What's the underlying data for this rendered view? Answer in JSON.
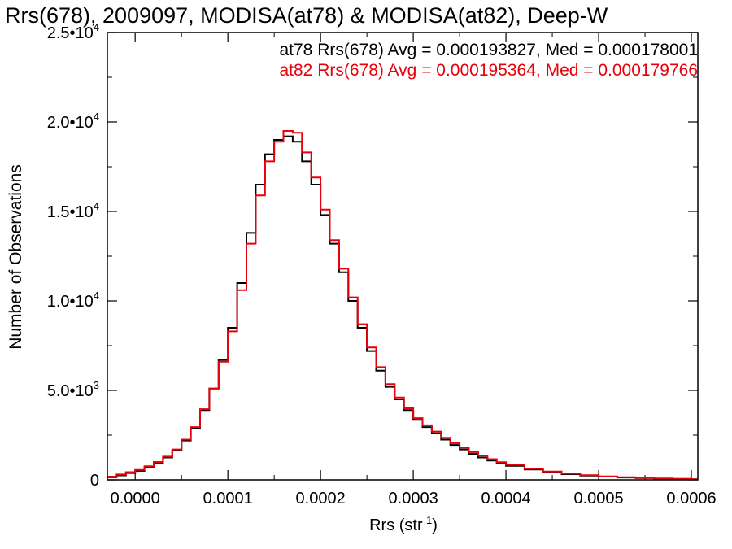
{
  "chart_data": {
    "type": "line",
    "style": "histogram-step",
    "title": "Rrs(678), 2009097, MODISA(at78) & MODISA(at82), Deep-W",
    "xlabel": "Rrs (str",
    "xlabel_sup": "-1",
    "xlabel_close": ")",
    "ylabel": "Number of Observations",
    "xlim": [
      -3e-05,
      0.000607
    ],
    "ylim": [
      0,
      25000
    ],
    "x_ticks": [
      0.0,
      0.0001,
      0.0002,
      0.0003,
      0.0004,
      0.0005,
      0.0006
    ],
    "x_tick_labels": [
      "0.0000",
      "0.0001",
      "0.0002",
      "0.0003",
      "0.0004",
      "0.0005",
      "0.0006"
    ],
    "y_ticks": [
      0,
      5000,
      10000,
      15000,
      20000,
      25000
    ],
    "y_tick_labels": [
      {
        "base": "0",
        "exp": ""
      },
      {
        "base": "5.0•10",
        "exp": "3"
      },
      {
        "base": "1.0•10",
        "exp": "4"
      },
      {
        "base": "1.5•10",
        "exp": "4"
      },
      {
        "base": "2.0•10",
        "exp": "4"
      },
      {
        "base": "2.5•10",
        "exp": "4"
      }
    ],
    "annotations": [
      {
        "text": "at78 Rrs(678) Avg = 0.000193827, Med = 0.000178001",
        "color": "#000000"
      },
      {
        "text": "at82 Rrs(678) Avg = 0.000195364, Med = 0.000179766",
        "color": "#e8000b"
      }
    ],
    "series": [
      {
        "color": "#000000",
        "x": [
          -3e-05,
          -2e-05,
          -1e-05,
          0.0,
          1e-05,
          2e-05,
          3e-05,
          4e-05,
          5e-05,
          6e-05,
          7e-05,
          8e-05,
          9e-05,
          0.0001,
          0.00011,
          0.00012,
          0.00013,
          0.00014,
          0.00015,
          0.00016,
          0.00017,
          0.00018,
          0.00019,
          0.0002,
          0.00021,
          0.00022,
          0.00023,
          0.00024,
          0.00025,
          0.00026,
          0.00027,
          0.00028,
          0.00029,
          0.0003,
          0.00031,
          0.00032,
          0.00033,
          0.00034,
          0.00035,
          0.00036,
          0.00037,
          0.00038,
          0.00039,
          0.0004,
          0.00042,
          0.00044,
          0.00046,
          0.00048,
          0.0005,
          0.00052,
          0.00054,
          0.00056,
          0.00058,
          0.0006
        ],
        "y": [
          150,
          250,
          380,
          500,
          700,
          950,
          1250,
          1650,
          2200,
          2900,
          3900,
          5100,
          6700,
          8500,
          11000,
          13800,
          16500,
          18200,
          19000,
          19200,
          18900,
          17800,
          16500,
          14800,
          13200,
          11600,
          10000,
          8500,
          7200,
          6100,
          5200,
          4500,
          3900,
          3350,
          2950,
          2600,
          2250,
          1950,
          1700,
          1450,
          1250,
          1080,
          920,
          780,
          580,
          430,
          320,
          240,
          180,
          130,
          100,
          70,
          50,
          30
        ]
      },
      {
        "color": "#e8000b",
        "x": [
          -3e-05,
          -2e-05,
          -1e-05,
          0.0,
          1e-05,
          2e-05,
          3e-05,
          4e-05,
          5e-05,
          6e-05,
          7e-05,
          8e-05,
          9e-05,
          0.0001,
          0.00011,
          0.00012,
          0.00013,
          0.00014,
          0.00015,
          0.00016,
          0.00017,
          0.00018,
          0.00019,
          0.0002,
          0.00021,
          0.00022,
          0.00023,
          0.00024,
          0.00025,
          0.00026,
          0.00027,
          0.00028,
          0.00029,
          0.0003,
          0.00031,
          0.00032,
          0.00033,
          0.00034,
          0.00035,
          0.00036,
          0.00037,
          0.00038,
          0.00039,
          0.0004,
          0.00042,
          0.00044,
          0.00046,
          0.00048,
          0.0005,
          0.00052,
          0.00054,
          0.00056,
          0.00058,
          0.0006
        ],
        "y": [
          180,
          300,
          430,
          560,
          760,
          1000,
          1300,
          1700,
          2250,
          2950,
          3950,
          5100,
          6600,
          8300,
          10600,
          13200,
          15900,
          17800,
          18900,
          19500,
          19400,
          18300,
          16900,
          15100,
          13400,
          11800,
          10200,
          8700,
          7400,
          6300,
          5350,
          4600,
          4000,
          3450,
          3050,
          2700,
          2350,
          2050,
          1800,
          1550,
          1350,
          1160,
          990,
          840,
          630,
          470,
          350,
          260,
          195,
          145,
          110,
          80,
          55,
          35
        ]
      }
    ]
  }
}
